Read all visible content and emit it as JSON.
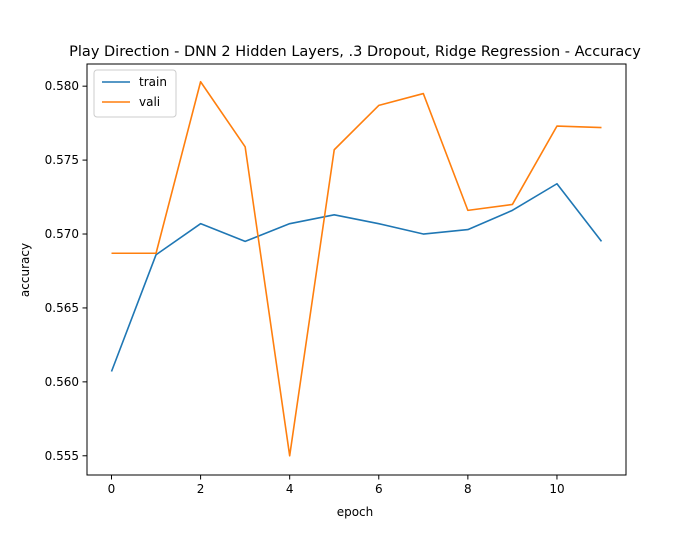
{
  "chart_data": {
    "type": "line",
    "title": "Play Direction - DNN 2 Hidden Layers, .3 Dropout, Ridge Regression - Accuracy",
    "xlabel": "epoch",
    "ylabel": "accuracy",
    "x": [
      0,
      1,
      2,
      3,
      4,
      5,
      6,
      7,
      8,
      9,
      10,
      11
    ],
    "xlim": [
      -0.55,
      11.55
    ],
    "ylim": [
      0.5537,
      0.5815
    ],
    "xticks": [
      0,
      2,
      4,
      6,
      8,
      10
    ],
    "yticks": [
      0.555,
      0.56,
      0.565,
      0.57,
      0.575,
      0.58
    ],
    "xtick_labels": [
      "0",
      "2",
      "4",
      "6",
      "8",
      "10"
    ],
    "ytick_labels": [
      "0.555",
      "0.560",
      "0.565",
      "0.570",
      "0.575",
      "0.580"
    ],
    "grid": false,
    "legend": "top-left",
    "series": [
      {
        "name": "train",
        "color": "#1f77b4",
        "values": [
          0.5607,
          0.5686,
          0.5707,
          0.5695,
          0.5707,
          0.5713,
          0.5707,
          0.57,
          0.5703,
          0.5716,
          0.5734,
          0.5695
        ]
      },
      {
        "name": "vali",
        "color": "#ff7f0e",
        "values": [
          0.5687,
          0.5687,
          0.5803,
          0.5759,
          0.555,
          0.5757,
          0.5787,
          0.5795,
          0.5716,
          0.572,
          0.5773,
          0.5772
        ]
      }
    ]
  }
}
